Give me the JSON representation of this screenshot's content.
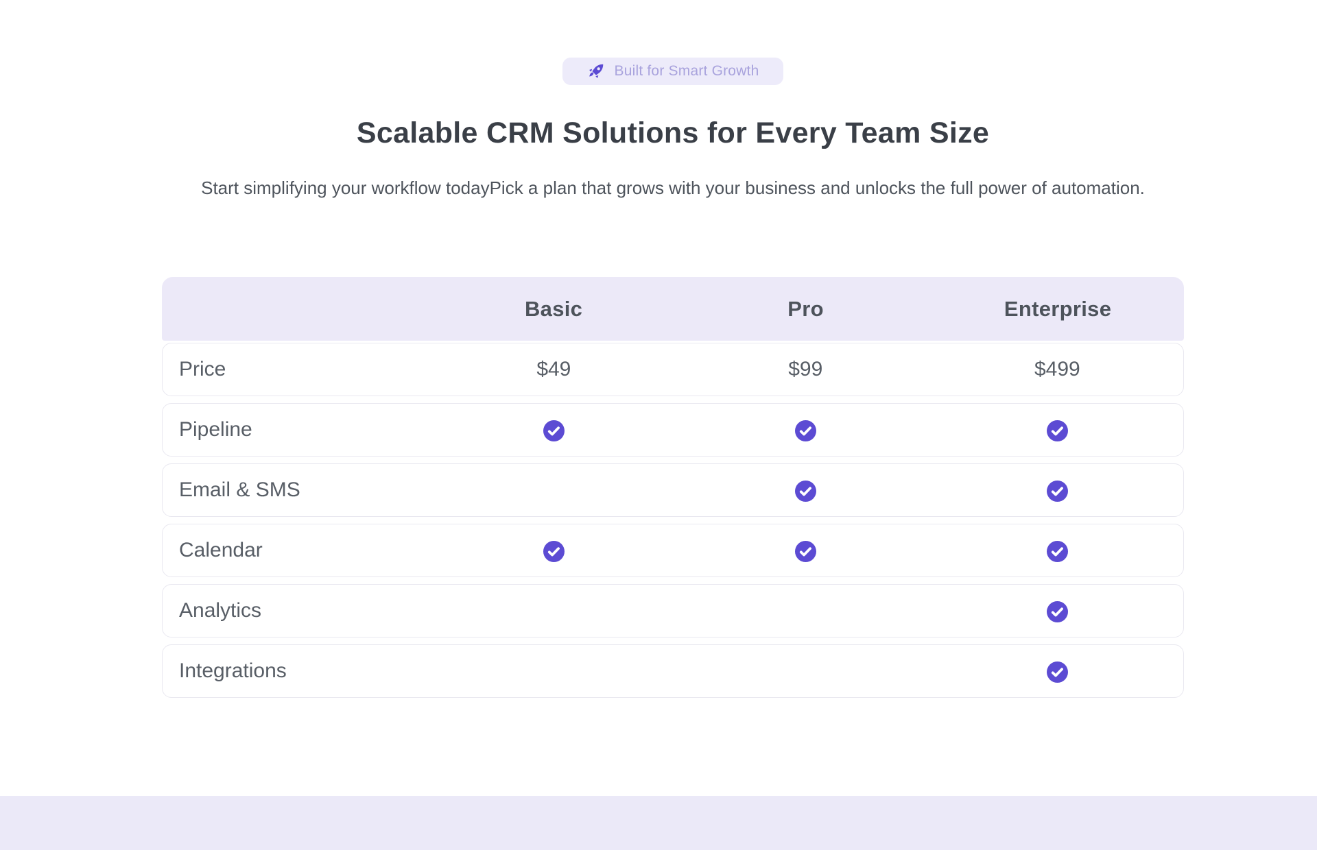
{
  "badge": {
    "icon": "rocket-icon",
    "label": "Built for Smart Growth"
  },
  "heading": "Scalable CRM Solutions for Every Team Size",
  "subheading": "Start simplifying your workflow todayPick a plan that grows with your business and unlocks the full power of automation.",
  "table": {
    "plans": [
      "Basic",
      "Pro",
      "Enterprise"
    ],
    "rows": [
      {
        "feature": "Price",
        "type": "text",
        "values": [
          "$49",
          "$99",
          "$499"
        ]
      },
      {
        "feature": "Pipeline",
        "type": "check",
        "values": [
          true,
          true,
          true
        ]
      },
      {
        "feature": "Email & SMS",
        "type": "check",
        "values": [
          false,
          true,
          true
        ]
      },
      {
        "feature": "Calendar",
        "type": "check",
        "values": [
          true,
          true,
          true
        ]
      },
      {
        "feature": "Analytics",
        "type": "check",
        "values": [
          false,
          false,
          true
        ]
      },
      {
        "feature": "Integrations",
        "type": "check",
        "values": [
          false,
          false,
          true
        ]
      }
    ]
  },
  "colors": {
    "accent": "#5c4bd3",
    "badge_bg": "#edebfa",
    "badge_text": "#a9a3dd",
    "header_bg": "#ece9f8",
    "footer_strip": "#ebe9f8",
    "heading_text": "#3a3f47",
    "body_text": "#585e66"
  }
}
